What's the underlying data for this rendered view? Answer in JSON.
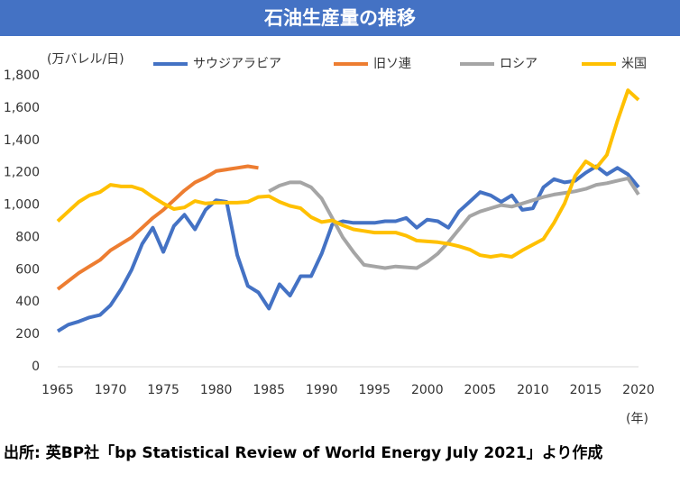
{
  "chart_data": {
    "type": "line",
    "title": "石油生産量の推移",
    "ylabel": "(万バレル/日)",
    "xlabel": "(年)",
    "source": "出所: 英BP社「bp Statistical Review of World Energy July 2021」より作成",
    "x": [
      1965,
      1966,
      1967,
      1968,
      1969,
      1970,
      1971,
      1972,
      1973,
      1974,
      1975,
      1976,
      1977,
      1978,
      1979,
      1980,
      1981,
      1982,
      1983,
      1984,
      1985,
      1986,
      1987,
      1988,
      1989,
      1990,
      1991,
      1992,
      1993,
      1994,
      1995,
      1996,
      1997,
      1998,
      1999,
      2000,
      2001,
      2002,
      2003,
      2004,
      2005,
      2006,
      2007,
      2008,
      2009,
      2010,
      2011,
      2012,
      2013,
      2014,
      2015,
      2016,
      2017,
      2018,
      2019,
      2020
    ],
    "xlim": [
      1965,
      2020
    ],
    "xticks": [
      1965,
      1970,
      1975,
      1980,
      1985,
      1990,
      1995,
      2000,
      2005,
      2010,
      2015,
      2020
    ],
    "ylim": [
      0,
      1800
    ],
    "yticks": [
      0,
      200,
      400,
      600,
      800,
      {
        "value": 1000,
        "label": "1,000"
      },
      {
        "value": 1200,
        "label": "1,200"
      },
      {
        "value": 1400,
        "label": "1,400"
      },
      {
        "value": 1600,
        "label": "1,600"
      },
      {
        "value": 1800,
        "label": "1,800"
      }
    ],
    "grid": false,
    "legend": "top",
    "series": [
      {
        "name": "サウジアラビア",
        "color": "#4472c4",
        "values": [
          220,
          260,
          280,
          305,
          320,
          380,
          480,
          600,
          760,
          860,
          710,
          870,
          940,
          850,
          970,
          1030,
          1020,
          690,
          500,
          460,
          360,
          510,
          440,
          560,
          560,
          700,
          880,
          900,
          890,
          890,
          890,
          900,
          900,
          920,
          860,
          910,
          900,
          860,
          960,
          1020,
          1080,
          1060,
          1020,
          1060,
          970,
          980,
          1110,
          1160,
          1140,
          1150,
          1200,
          1240,
          1190,
          1230,
          1190,
          1110
        ]
      },
      {
        "name": "旧ソ連",
        "color": "#ed7d31",
        "values": [
          480,
          530,
          580,
          620,
          660,
          720,
          760,
          800,
          860,
          920,
          970,
          1030,
          1090,
          1140,
          1170,
          1210,
          1220,
          1230,
          1240,
          1230,
          null,
          null,
          null,
          null,
          null,
          null,
          null,
          null,
          null,
          null,
          null,
          null,
          null,
          null,
          null,
          null,
          null,
          null,
          null,
          null,
          null,
          null,
          null,
          null,
          null,
          null,
          null,
          null,
          null,
          null,
          null,
          null,
          null,
          null,
          null,
          null
        ]
      },
      {
        "name": "ロシア",
        "color": "#a5a5a5",
        "values": [
          null,
          null,
          null,
          null,
          null,
          null,
          null,
          null,
          null,
          null,
          null,
          null,
          null,
          null,
          null,
          null,
          null,
          null,
          null,
          null,
          1085,
          1120,
          1140,
          1140,
          1110,
          1040,
          920,
          800,
          710,
          630,
          620,
          610,
          620,
          615,
          610,
          650,
          700,
          770,
          850,
          930,
          960,
          980,
          1000,
          990,
          1010,
          1030,
          1050,
          1065,
          1075,
          1085,
          1100,
          1125,
          1135,
          1150,
          1165,
          1065
        ]
      },
      {
        "name": "米国",
        "color": "#ffc000",
        "values": [
          900,
          960,
          1020,
          1060,
          1080,
          1125,
          1115,
          1115,
          1095,
          1050,
          1010,
          975,
          985,
          1025,
          1010,
          1015,
          1015,
          1015,
          1020,
          1050,
          1055,
          1020,
          995,
          980,
          925,
          895,
          905,
          875,
          850,
          840,
          830,
          830,
          830,
          810,
          780,
          775,
          770,
          760,
          745,
          725,
          690,
          680,
          690,
          680,
          720,
          755,
          790,
          890,
          1010,
          1180,
          1270,
          1230,
          1310,
          1520,
          1710,
          1650
        ]
      }
    ]
  }
}
